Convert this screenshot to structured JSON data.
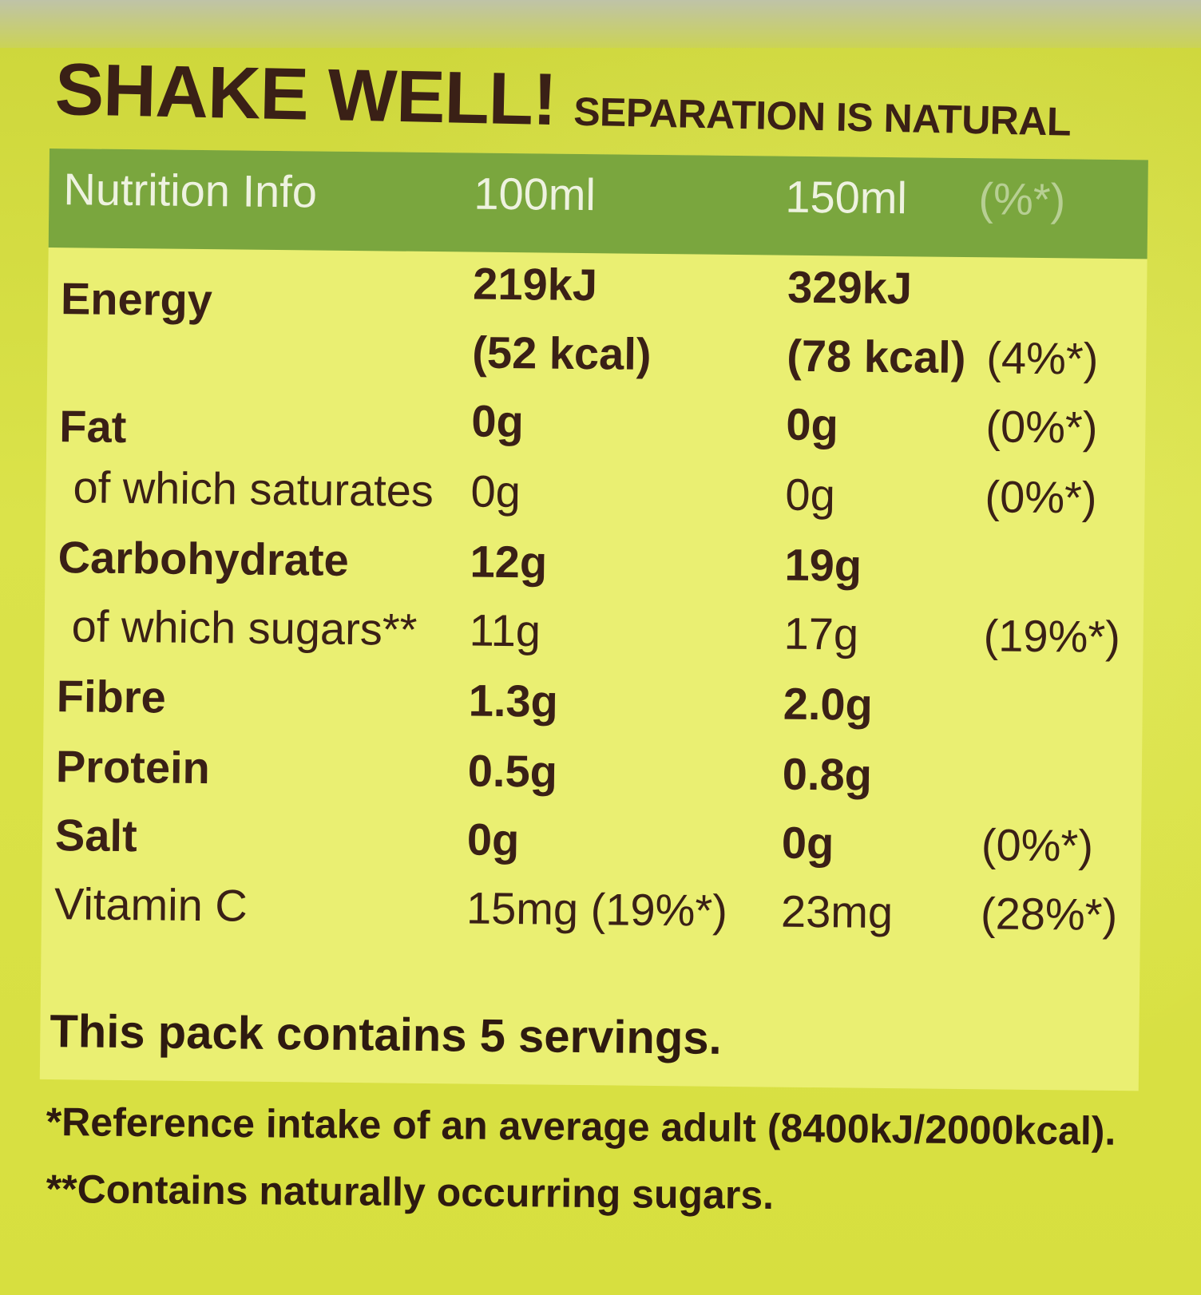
{
  "header": {
    "shake_well": "SHAKE WELL!",
    "separation": "SEPARATION IS NATURAL"
  },
  "table": {
    "columns": {
      "name": "Nutrition Info",
      "per_100ml": "100ml",
      "per_150ml": "150ml",
      "pct": "(%*)"
    },
    "rows": [
      {
        "name": "Energy",
        "v100": "219kJ",
        "v150": "329kJ",
        "pct": ""
      },
      {
        "name": "",
        "v100": "(52 kcal)",
        "v150": "(78 kcal)",
        "pct": "(4%*)"
      },
      {
        "name": "Fat",
        "v100": "0g",
        "v150": "0g",
        "pct": "(0%*)"
      },
      {
        "name": "of which saturates",
        "v100": "0g",
        "v150": "0g",
        "pct": "(0%*)"
      },
      {
        "name": "Carbohydrate",
        "v100": "12g",
        "v150": "19g",
        "pct": ""
      },
      {
        "name": "of which sugars**",
        "v100": "11g",
        "v150": "17g",
        "pct": "(19%*)"
      },
      {
        "name": "Fibre",
        "v100": "1.3g",
        "v150": "2.0g",
        "pct": ""
      },
      {
        "name": "Protein",
        "v100": "0.5g",
        "v150": "0.8g",
        "pct": ""
      },
      {
        "name": "Salt",
        "v100": "0g",
        "v150": "0g",
        "pct": "(0%*)"
      },
      {
        "name": "Vitamin C",
        "v100": "15mg (19%*)",
        "v150": "23mg",
        "pct": "(28%*)"
      }
    ]
  },
  "servings": "This pack contains 5 servings.",
  "footnotes": {
    "reference": "*Reference intake of an average adult (8400kJ/2000kcal).",
    "sugars": "**Contains naturally occurring sugars."
  }
}
